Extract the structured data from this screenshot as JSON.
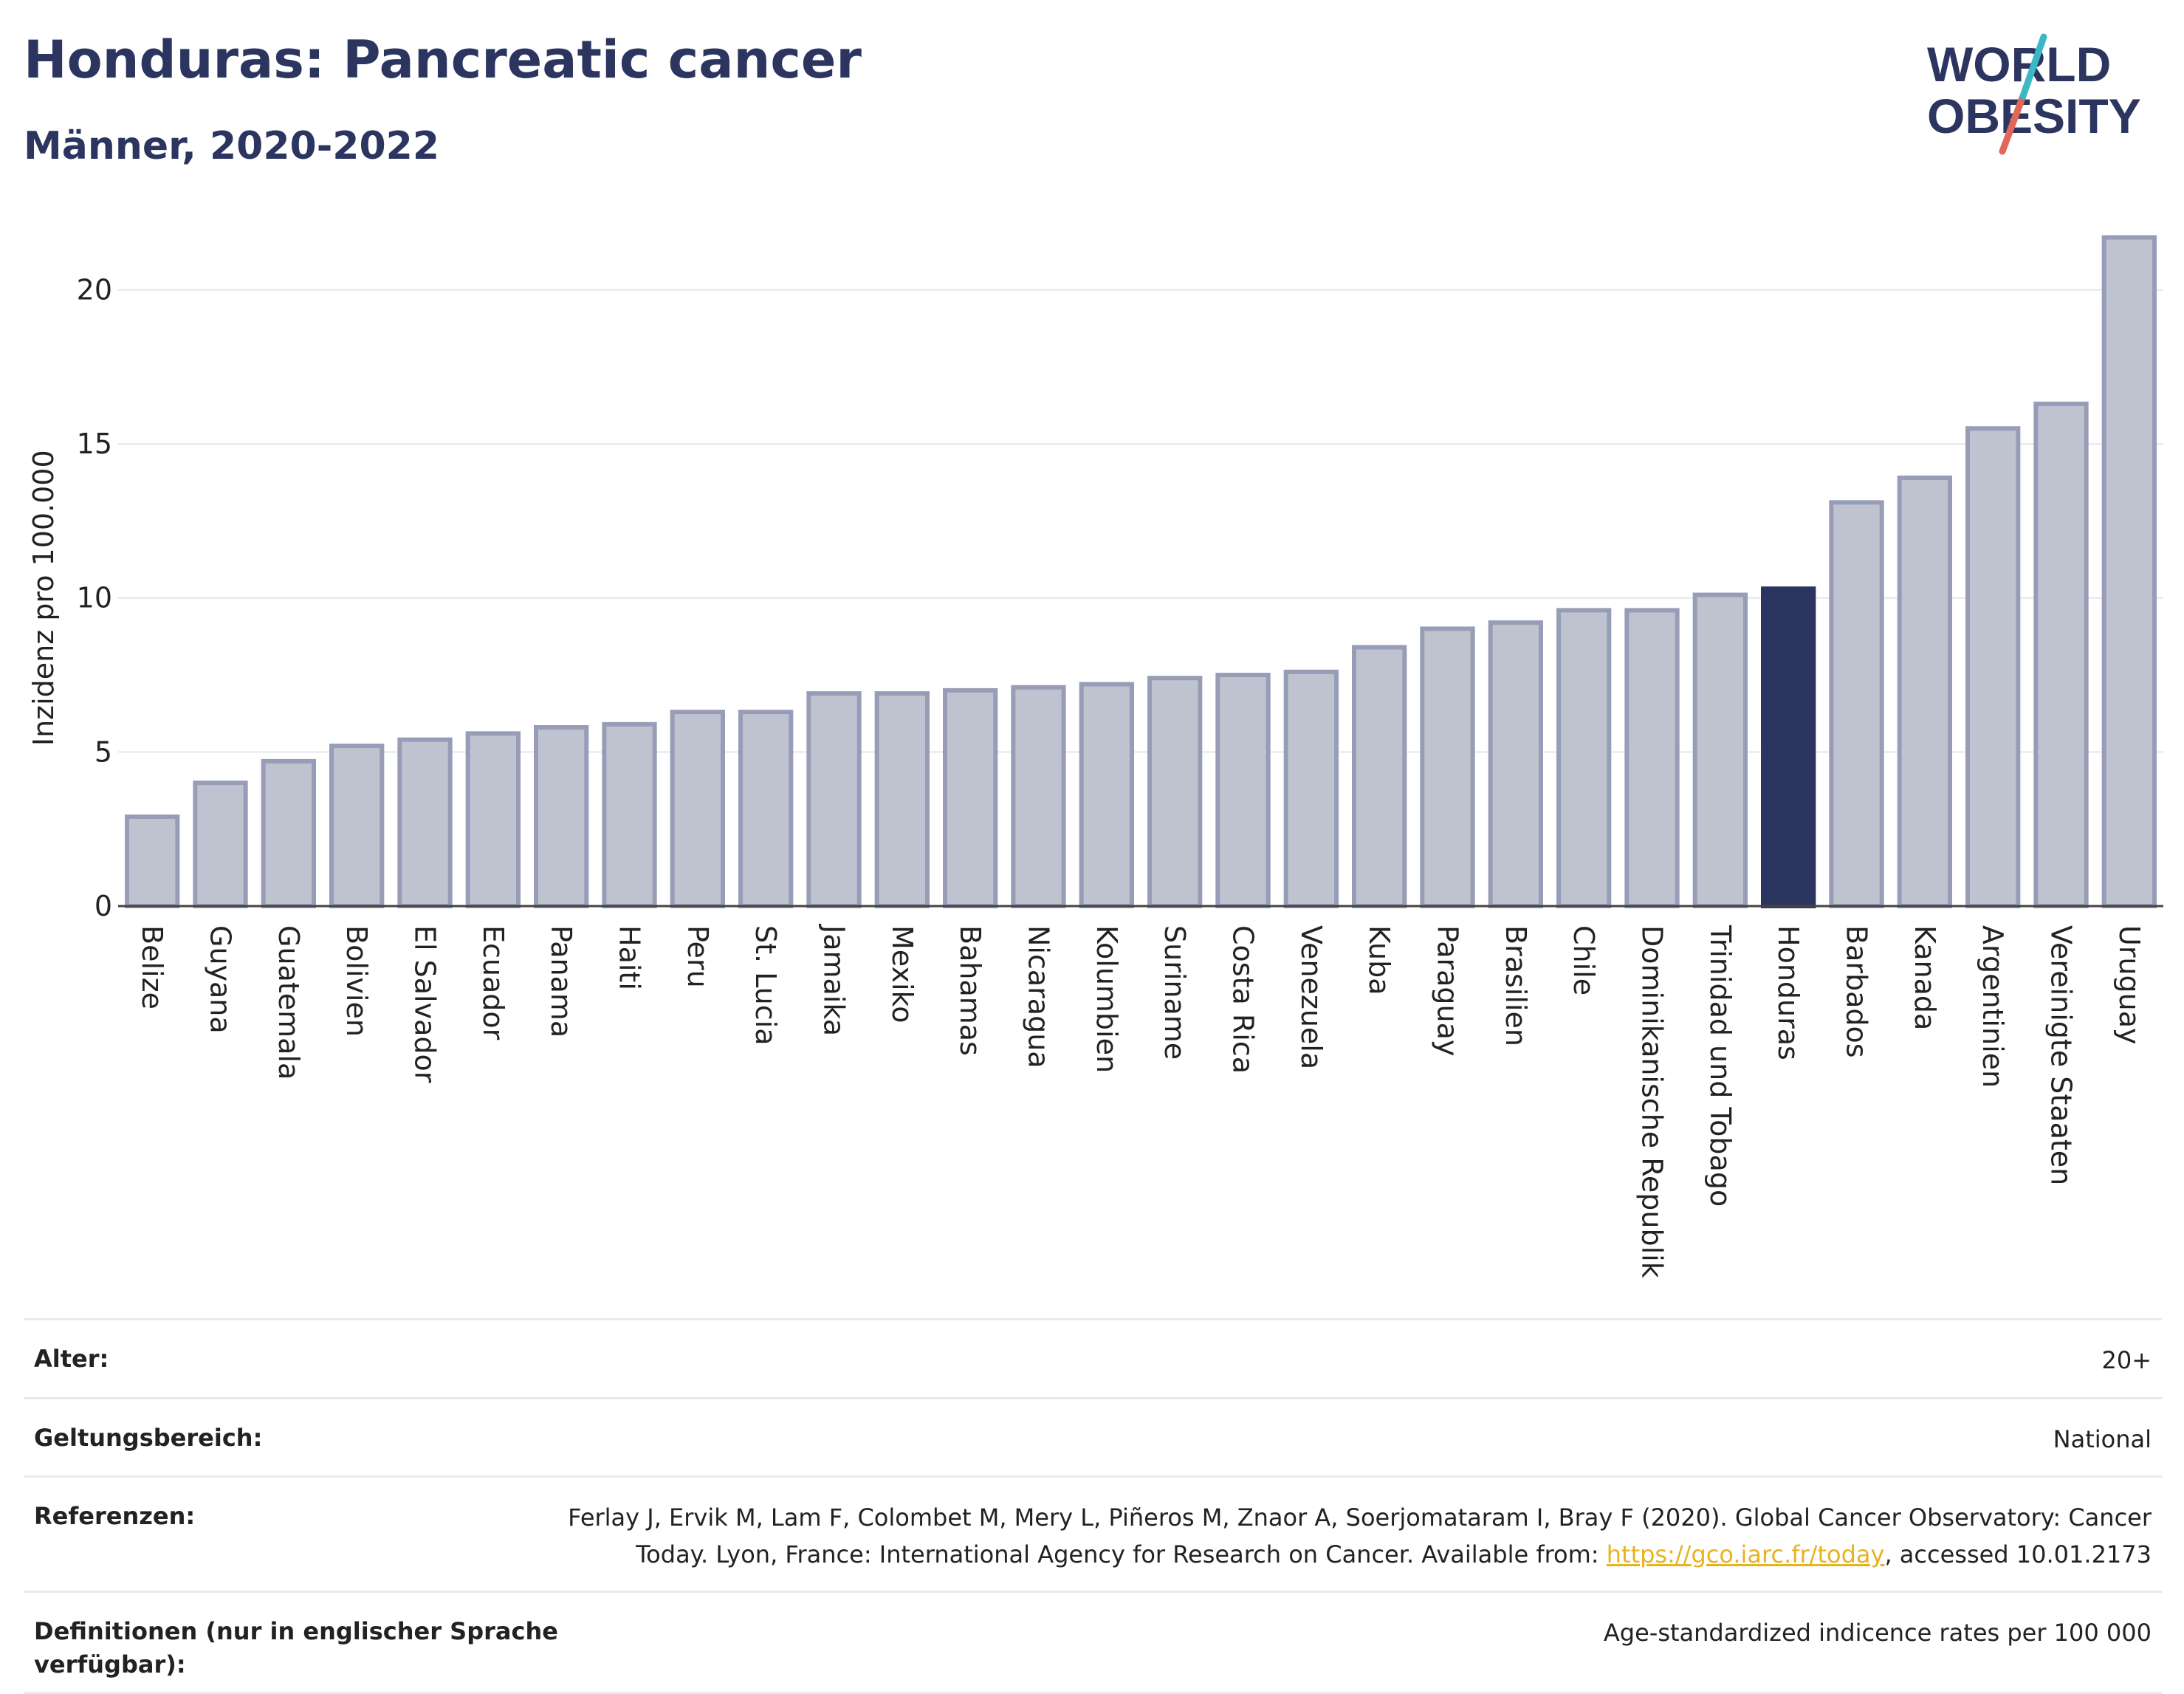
{
  "title": "Honduras: Pancreatic cancer",
  "subtitle": "Männer, 2020-2022",
  "logo": {
    "line1": "WORLD",
    "line2": "OBESITY",
    "accent_colors": [
      "#3cb8c5",
      "#e0675a"
    ]
  },
  "colors": {
    "bar": "#bfc3d0",
    "bar_edge": "#979db6",
    "highlight": "#2c3560",
    "title": "#2c3560"
  },
  "chart_data": {
    "type": "bar",
    "title": "Honduras: Pancreatic cancer",
    "subtitle": "Männer, 2020-2022",
    "ylabel": "Inzidenz pro 100.000",
    "xlabel": "",
    "ylim": [
      0,
      22
    ],
    "yticks": [
      0,
      5,
      10,
      15,
      20
    ],
    "grid": true,
    "highlight": "Honduras",
    "categories": [
      "Belize",
      "Guyana",
      "Guatemala",
      "Bolivien",
      "El Salvador",
      "Ecuador",
      "Panama",
      "Haiti",
      "Peru",
      "St. Lucia",
      "Jamaika",
      "Mexiko",
      "Bahamas",
      "Nicaragua",
      "Kolumbien",
      "Suriname",
      "Costa Rica",
      "Venezuela",
      "Kuba",
      "Paraguay",
      "Brasilien",
      "Chile",
      "Dominikanische Republik",
      "Trinidad und Tobago",
      "Honduras",
      "Barbados",
      "Kanada",
      "Argentinien",
      "Vereinigte Staaten",
      "Uruguay"
    ],
    "values": [
      2.9,
      4.0,
      4.7,
      5.2,
      5.4,
      5.6,
      5.8,
      5.9,
      6.3,
      6.3,
      6.9,
      6.9,
      7.0,
      7.1,
      7.2,
      7.4,
      7.5,
      7.6,
      8.4,
      9.0,
      9.2,
      9.6,
      9.6,
      10.1,
      10.3,
      13.1,
      13.9,
      15.5,
      16.3,
      21.7
    ]
  },
  "info": {
    "age_label": "Alter:",
    "age_value": "20+",
    "scope_label": "Geltungsbereich:",
    "scope_value": "National",
    "ref_label": "Referenzen:",
    "ref_line1": "Ferlay J, Ervik M, Lam F, Colombet M, Mery L, Piñeros M, Znaor A, Soerjomataram I, Bray F (2020). Global Cancer Observatory: Cancer",
    "ref_line2_pre": "Today. Lyon, France: International Agency for Research on Cancer. Available from: ",
    "ref_link": "https://gco.iarc.fr/today",
    "ref_line2_post": ", accessed 10.01.2173",
    "def_label": "Definitionen (nur in englischer Sprache verfügbar):",
    "def_value": "Age-standardized indicence rates per 100 000"
  }
}
